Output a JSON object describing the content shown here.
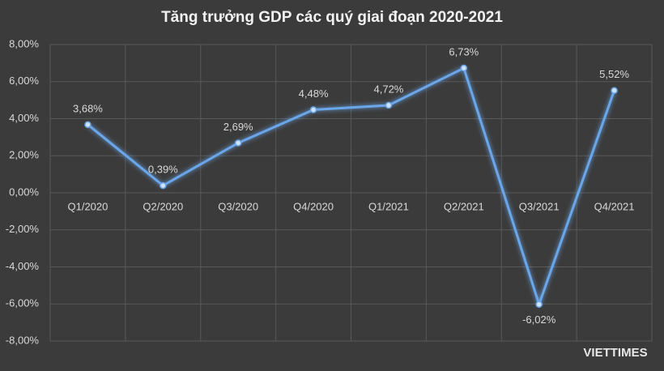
{
  "chart_data": {
    "type": "line",
    "title": "Tăng trưởng GDP các quý giai đoạn 2020-2021",
    "categories": [
      "Q1/2020",
      "Q2/2020",
      "Q3/2020",
      "Q4/2020",
      "Q1/2021",
      "Q2/2021",
      "Q3/2021",
      "Q4/2021"
    ],
    "series": [
      {
        "name": "GDP",
        "color": "#6aa6ea",
        "values": [
          3.68,
          0.39,
          2.69,
          4.48,
          4.72,
          6.73,
          -6.02,
          5.52
        ],
        "value_labels": [
          "3,68%",
          "0,39%",
          "2,69%",
          "4,48%",
          "4,72%",
          "6,73%",
          "-6,02%",
          "5,52%"
        ]
      }
    ],
    "ylim": [
      -8,
      8
    ],
    "yticks": [
      {
        "value": -8,
        "label": "-8,00%"
      },
      {
        "value": -6,
        "label": "-6,00%"
      },
      {
        "value": -4,
        "label": "-4,00%"
      },
      {
        "value": -2,
        "label": "-2,00%"
      },
      {
        "value": 0,
        "label": "0,00%"
      },
      {
        "value": 2,
        "label": "2,00%"
      },
      {
        "value": 4,
        "label": "4,00%"
      },
      {
        "value": 6,
        "label": "6,00%"
      },
      {
        "value": 8,
        "label": "8,00%"
      }
    ],
    "grid": true
  },
  "watermark": "VIETTIMES"
}
